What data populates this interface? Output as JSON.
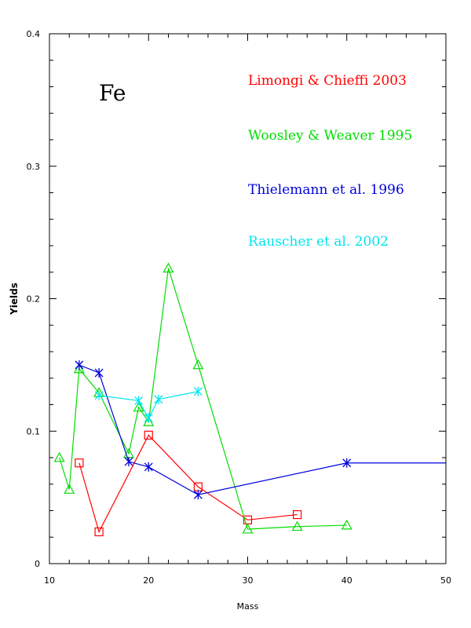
{
  "chart_data": {
    "type": "line",
    "title": "",
    "xlabel": "Mass",
    "ylabel": "Yields",
    "xlim": [
      10,
      50
    ],
    "ylim": [
      0,
      0.4
    ],
    "x_ticks": [
      "10",
      "20",
      "30",
      "40",
      "50"
    ],
    "y_ticks": [
      "0",
      "0.1",
      "0.2",
      "0.3",
      "0.4"
    ],
    "x_tick_values": [
      10,
      20,
      30,
      40,
      50
    ],
    "y_tick_values": [
      0,
      0.1,
      0.2,
      0.3,
      0.4
    ],
    "grid": false,
    "legend_position": "top-right",
    "annotation": "Fe",
    "series": [
      {
        "name": "Limongi & Chieffi 2003",
        "color": "#ff0000",
        "marker": "square",
        "points": [
          [
            13,
            0.076
          ],
          [
            15,
            0.024
          ],
          [
            20,
            0.097
          ],
          [
            25,
            0.058
          ],
          [
            30,
            0.033
          ],
          [
            35,
            0.037
          ]
        ]
      },
      {
        "name": "Woosley & Weaver 1995",
        "color": "#00dd00",
        "marker": "triangle",
        "points": [
          [
            11,
            0.08
          ],
          [
            12,
            0.056
          ],
          [
            13,
            0.147
          ],
          [
            15,
            0.129
          ],
          [
            18,
            0.083
          ],
          [
            19,
            0.118
          ],
          [
            20,
            0.107
          ],
          [
            22,
            0.223
          ],
          [
            25,
            0.15
          ],
          [
            30,
            0.026
          ],
          [
            35,
            0.028
          ],
          [
            40,
            0.029
          ]
        ]
      },
      {
        "name": "Thielemann et al. 1996",
        "color": "#0000dd",
        "marker": "star",
        "points": [
          [
            13,
            0.15
          ],
          [
            15,
            0.144
          ],
          [
            18,
            0.077
          ],
          [
            20,
            0.073
          ],
          [
            25,
            0.052
          ],
          [
            40,
            0.076
          ],
          [
            50,
            0.076
          ]
        ]
      },
      {
        "name": "Rauscher et al. 2002",
        "color": "#00e5ee",
        "marker": "star",
        "points": [
          [
            15,
            0.127
          ],
          [
            19,
            0.123
          ],
          [
            20,
            0.11
          ],
          [
            21,
            0.124
          ],
          [
            25,
            0.13
          ]
        ]
      }
    ]
  }
}
